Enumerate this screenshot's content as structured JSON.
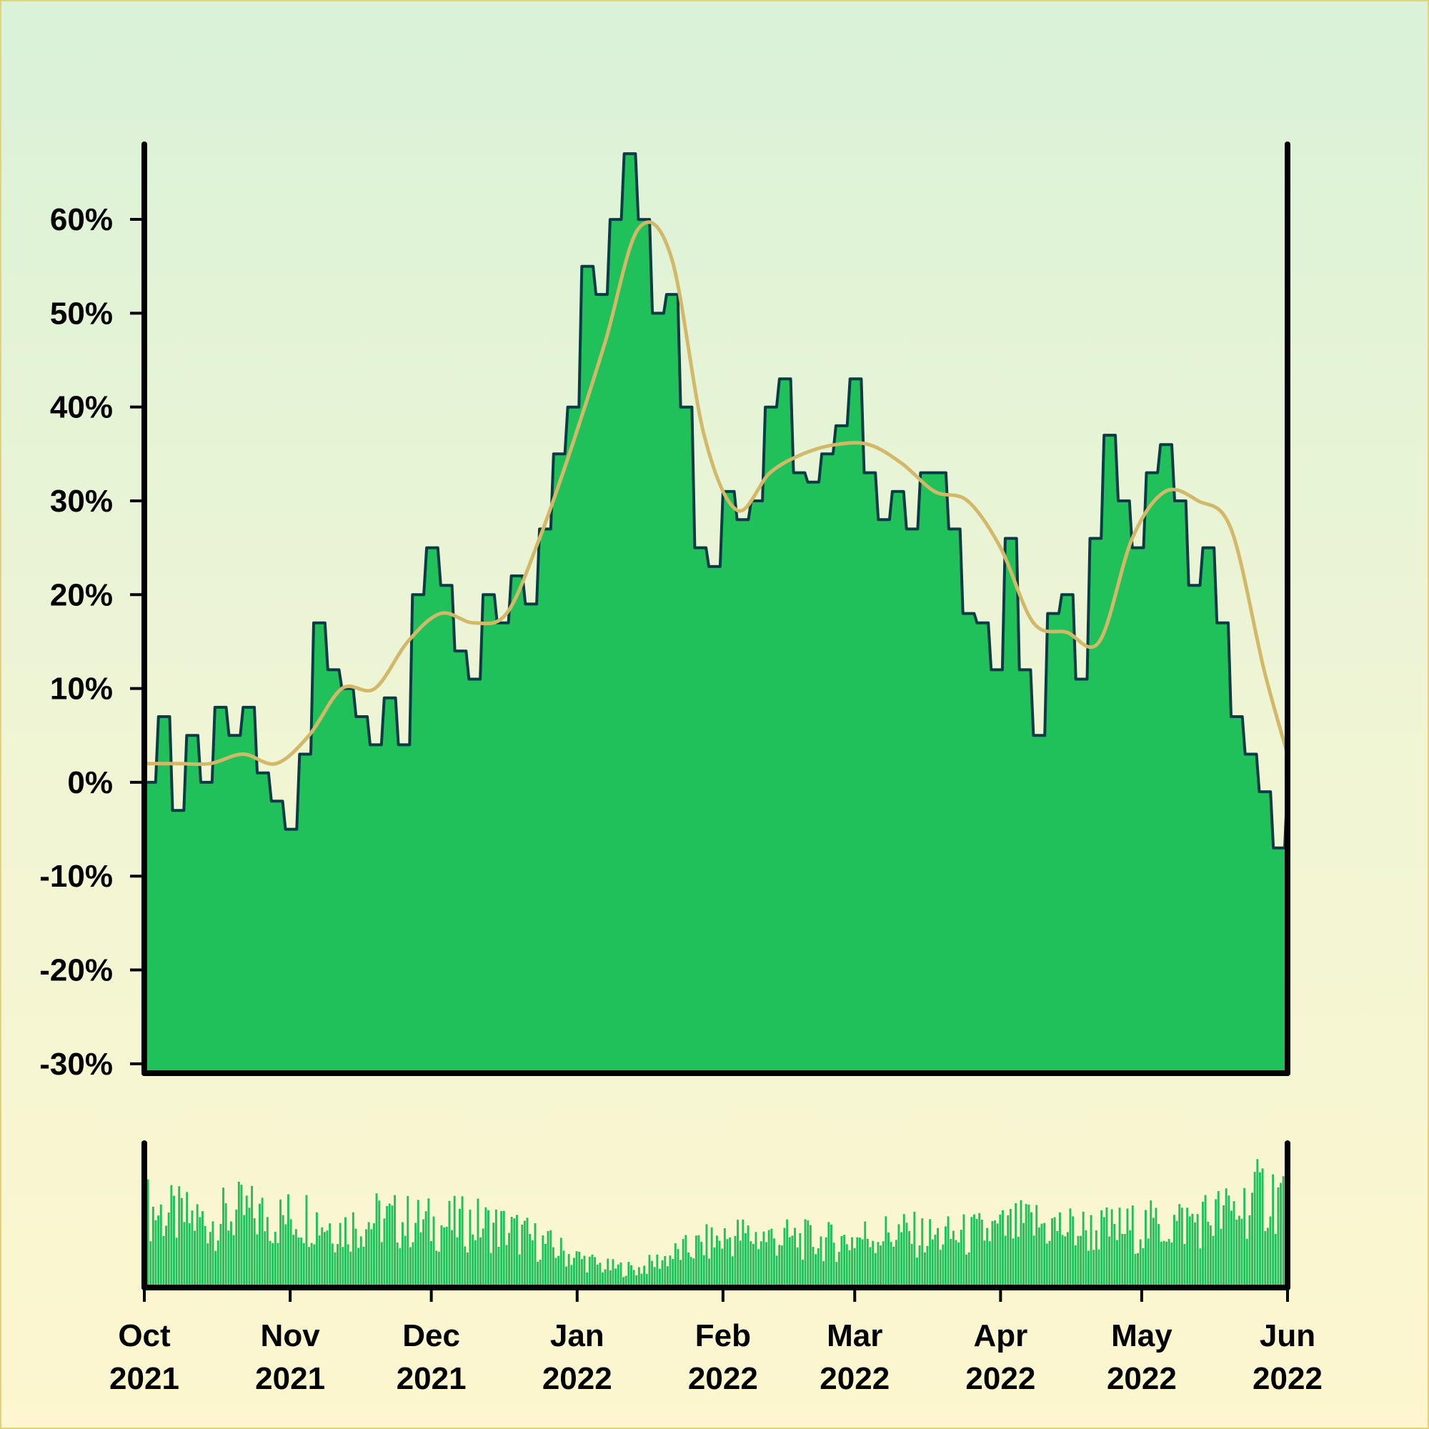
{
  "colors": {
    "area_fill": "#20c05a",
    "area_line": "#0b3b45",
    "moving_average": "#d2b96a",
    "volume": "#20c05a",
    "axis": "#000000"
  },
  "chart_data": [
    {
      "type": "area",
      "title": "",
      "xlabel": "",
      "ylabel": "",
      "xlim": [
        "2021-10-01",
        "2022-06-01"
      ],
      "ylim": [
        -31,
        68
      ],
      "y_ticks": [
        60,
        50,
        40,
        30,
        20,
        10,
        0,
        -10,
        -20,
        -30
      ],
      "y_tick_labels": [
        "60%",
        "50%",
        "40%",
        "30%",
        "20%",
        "10%",
        "0%",
        "-10%",
        "-20%",
        "-30%"
      ],
      "grid": false,
      "series": [
        {
          "role": "return",
          "x": [
            "2021-10-01",
            "2021-10-04",
            "2021-10-07",
            "2021-10-10",
            "2021-10-13",
            "2021-10-16",
            "2021-10-19",
            "2021-10-22",
            "2021-10-25",
            "2021-10-28",
            "2021-10-31",
            "2021-11-03",
            "2021-11-06",
            "2021-11-09",
            "2021-11-12",
            "2021-11-15",
            "2021-11-18",
            "2021-11-21",
            "2021-11-24",
            "2021-11-27",
            "2021-11-30",
            "2021-12-03",
            "2021-12-06",
            "2021-12-09",
            "2021-12-12",
            "2021-12-15",
            "2021-12-18",
            "2021-12-21",
            "2021-12-24",
            "2021-12-27",
            "2021-12-30",
            "2022-01-02",
            "2022-01-05",
            "2022-01-08",
            "2022-01-11",
            "2022-01-14",
            "2022-01-17",
            "2022-01-20",
            "2022-01-23",
            "2022-01-26",
            "2022-01-29",
            "2022-02-01",
            "2022-02-04",
            "2022-02-07",
            "2022-02-10",
            "2022-02-13",
            "2022-02-16",
            "2022-02-19",
            "2022-02-22",
            "2022-02-25",
            "2022-02-28",
            "2022-03-03",
            "2022-03-06",
            "2022-03-09",
            "2022-03-12",
            "2022-03-15",
            "2022-03-18",
            "2022-03-21",
            "2022-03-24",
            "2022-03-27",
            "2022-03-30",
            "2022-04-02",
            "2022-04-05",
            "2022-04-08",
            "2022-04-11",
            "2022-04-14",
            "2022-04-17",
            "2022-04-20",
            "2022-04-23",
            "2022-04-26",
            "2022-04-29",
            "2022-05-02",
            "2022-05-05",
            "2022-05-08",
            "2022-05-11",
            "2022-05-14",
            "2022-05-17",
            "2022-05-20",
            "2022-05-23",
            "2022-05-26",
            "2022-05-29",
            "2022-06-01"
          ],
          "y": [
            0,
            7,
            -3,
            5,
            0,
            8,
            5,
            8,
            1,
            -2,
            -5,
            3,
            17,
            12,
            10,
            7,
            4,
            9,
            4,
            20,
            25,
            21,
            14,
            11,
            20,
            17,
            22,
            19,
            27,
            35,
            40,
            55,
            52,
            60,
            67,
            60,
            50,
            52,
            40,
            25,
            23,
            31,
            28,
            30,
            40,
            43,
            33,
            32,
            35,
            38,
            43,
            33,
            28,
            31,
            27,
            33,
            33,
            27,
            18,
            17,
            12,
            26,
            12,
            5,
            18,
            20,
            11,
            26,
            37,
            30,
            25,
            33,
            36,
            30,
            21,
            25,
            17,
            7,
            3,
            -1,
            -7,
            0
          ]
        },
        {
          "role": "moving_average",
          "x": [
            "2021-10-01",
            "2021-10-08",
            "2021-10-15",
            "2021-10-22",
            "2021-10-29",
            "2021-11-05",
            "2021-11-12",
            "2021-11-19",
            "2021-11-26",
            "2021-12-03",
            "2021-12-10",
            "2021-12-17",
            "2021-12-24",
            "2021-12-31",
            "2022-01-07",
            "2022-01-14",
            "2022-01-21",
            "2022-01-28",
            "2022-02-04",
            "2022-02-11",
            "2022-02-18",
            "2022-02-25",
            "2022-03-04",
            "2022-03-11",
            "2022-03-18",
            "2022-03-25",
            "2022-04-01",
            "2022-04-08",
            "2022-04-15",
            "2022-04-22",
            "2022-04-29",
            "2022-05-06",
            "2022-05-13",
            "2022-05-20",
            "2022-05-27",
            "2022-06-01"
          ],
          "y": [
            2,
            2,
            2,
            3,
            2,
            5,
            10,
            10,
            15,
            18,
            17,
            18,
            26,
            36,
            47,
            59,
            56,
            37,
            29,
            33,
            35,
            36,
            36,
            34,
            31,
            30,
            25,
            17,
            16,
            15,
            26,
            31,
            30,
            27,
            12,
            3
          ]
        }
      ]
    },
    {
      "type": "bar",
      "title": "",
      "xlabel": "",
      "ylabel": "",
      "xlim": [
        "2021-10-01",
        "2022-06-01"
      ],
      "ylim": [
        0,
        100
      ],
      "x_tick_labels": [
        [
          "Oct",
          "2021"
        ],
        [
          "Nov",
          "2021"
        ],
        [
          "Dec",
          "2021"
        ],
        [
          "Jan",
          "2022"
        ],
        [
          "Feb",
          "2022"
        ],
        [
          "Mar",
          "2022"
        ],
        [
          "Apr",
          "2022"
        ],
        [
          "May",
          "2022"
        ],
        [
          "Jun",
          "2022"
        ]
      ],
      "series": [
        {
          "role": "volume",
          "x": [
            "2021-10-01",
            "2021-10-08",
            "2021-10-15",
            "2021-10-22",
            "2021-10-29",
            "2021-11-05",
            "2021-11-12",
            "2021-11-19",
            "2021-11-26",
            "2021-12-03",
            "2021-12-10",
            "2021-12-17",
            "2021-12-24",
            "2021-12-31",
            "2022-01-07",
            "2022-01-14",
            "2022-01-21",
            "2022-01-28",
            "2022-02-04",
            "2022-02-11",
            "2022-02-18",
            "2022-02-25",
            "2022-03-04",
            "2022-03-11",
            "2022-03-18",
            "2022-03-25",
            "2022-04-01",
            "2022-04-08",
            "2022-04-15",
            "2022-04-22",
            "2022-04-29",
            "2022-05-06",
            "2022-05-13",
            "2022-05-20",
            "2022-05-27"
          ],
          "values": [
            70,
            62,
            58,
            66,
            60,
            64,
            52,
            60,
            58,
            55,
            57,
            52,
            40,
            28,
            18,
            16,
            28,
            38,
            46,
            44,
            42,
            40,
            46,
            48,
            44,
            46,
            50,
            56,
            52,
            50,
            52,
            55,
            60,
            66,
            82
          ]
        }
      ]
    }
  ]
}
